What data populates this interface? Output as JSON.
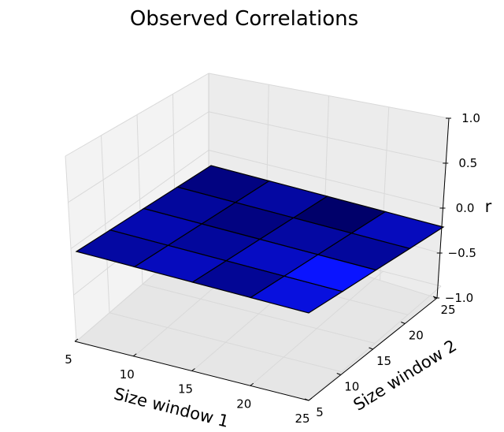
{
  "chart_data": {
    "type": "surface3d",
    "title": "Observed Correlations",
    "xlabel": "Size window 1",
    "ylabel": "Size window 2",
    "zlabel": "r",
    "xticks": [
      5,
      10,
      15,
      20,
      25
    ],
    "yticks": [
      5,
      10,
      15,
      20,
      25
    ],
    "zticks": [
      "−1.0",
      "−0.5",
      "0.0",
      "0.5",
      "1.0"
    ],
    "xlim": [
      5,
      25
    ],
    "ylim": [
      5,
      25
    ],
    "zlim": [
      -1.0,
      1.0
    ],
    "grid": true,
    "colormap": "blue",
    "x": [
      5,
      10,
      15,
      20,
      25
    ],
    "y": [
      5,
      10,
      15,
      20,
      25
    ],
    "cell_r": [
      [
        0.02,
        0.1,
        -0.02,
        0.2
      ],
      [
        0.06,
        0.0,
        0.12,
        0.3
      ],
      [
        0.0,
        -0.08,
        0.02,
        0.0
      ],
      [
        -0.08,
        0.02,
        -0.15,
        0.1
      ]
    ],
    "edge_color": "#000000",
    "face_color_min": "#00006a",
    "face_color_max": "#0a14ff"
  }
}
